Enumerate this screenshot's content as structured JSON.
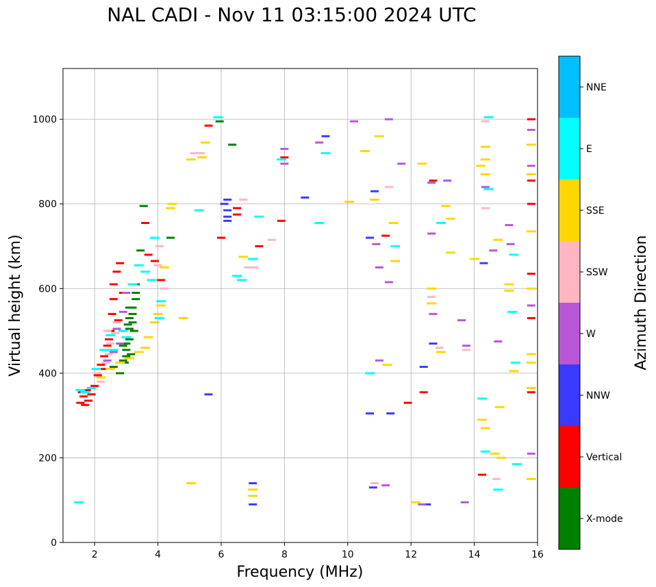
{
  "chart_data": {
    "type": "scatter",
    "title": "NAL CADI - Nov 11 03:15:00 2024 UTC",
    "xlabel": "Frequency (MHz)",
    "ylabel": "Virtual height (km)",
    "xlim": [
      1,
      16
    ],
    "ylim": [
      0,
      1120
    ],
    "xticks": [
      2,
      4,
      6,
      8,
      10,
      12,
      14,
      16
    ],
    "yticks": [
      0,
      200,
      400,
      600,
      800,
      1000
    ],
    "grid": true,
    "colorbar": {
      "label": "Azimuth Direction",
      "categories": [
        "X-mode",
        "Vertical",
        "NNW",
        "W",
        "SSW",
        "SSE",
        "E",
        "NNE"
      ],
      "colors": [
        "#008000",
        "#ff0000",
        "#3a3aff",
        "#b657d8",
        "#ffb6c1",
        "#ffd700",
        "#00ffff",
        "#00bfff"
      ]
    },
    "series": [
      {
        "name": "X-mode",
        "points": [
          [
            2.6,
            415
          ],
          [
            2.8,
            400
          ],
          [
            2.9,
            430
          ],
          [
            3.0,
            440
          ],
          [
            3.0,
            470
          ],
          [
            3.1,
            505
          ],
          [
            3.1,
            530
          ],
          [
            3.2,
            540
          ],
          [
            3.2,
            555
          ],
          [
            3.3,
            575
          ],
          [
            3.3,
            590
          ],
          [
            3.45,
            690
          ],
          [
            3.55,
            795
          ],
          [
            3.0,
            455
          ],
          [
            2.9,
            465
          ],
          [
            3.1,
            480
          ],
          [
            3.2,
            520
          ],
          [
            3.15,
            445
          ],
          [
            3.25,
            500
          ],
          [
            3.05,
            515
          ],
          [
            2.85,
            470
          ],
          [
            3.3,
            610
          ],
          [
            4.4,
            720
          ],
          [
            6.35,
            940
          ],
          [
            5.95,
            995
          ],
          [
            3.1,
            555
          ],
          [
            2.95,
            425
          ]
        ]
      },
      {
        "name": "Vertical",
        "points": [
          [
            1.55,
            330
          ],
          [
            1.7,
            325
          ],
          [
            1.8,
            335
          ],
          [
            1.6,
            355
          ],
          [
            2.0,
            370
          ],
          [
            2.1,
            395
          ],
          [
            2.2,
            420
          ],
          [
            2.3,
            440
          ],
          [
            2.4,
            465
          ],
          [
            2.5,
            500
          ],
          [
            2.55,
            540
          ],
          [
            2.6,
            575
          ],
          [
            2.6,
            610
          ],
          [
            2.7,
            640
          ],
          [
            2.8,
            660
          ],
          [
            2.9,
            590
          ],
          [
            3.7,
            680
          ],
          [
            3.9,
            665
          ],
          [
            4.1,
            620
          ],
          [
            3.6,
            755
          ],
          [
            5.6,
            985
          ],
          [
            6.0,
            720
          ],
          [
            6.5,
            790
          ],
          [
            6.5,
            775
          ],
          [
            7.2,
            700
          ],
          [
            7.9,
            760
          ],
          [
            8.0,
            910
          ],
          [
            11.2,
            725
          ],
          [
            12.7,
            855
          ],
          [
            12.4,
            355
          ],
          [
            14.25,
            160
          ],
          [
            15.8,
            355
          ],
          [
            15.8,
            530
          ],
          [
            15.8,
            635
          ],
          [
            15.8,
            800
          ],
          [
            15.8,
            855
          ],
          [
            15.8,
            1000
          ],
          [
            11.9,
            330
          ],
          [
            1.9,
            350
          ],
          [
            2.3,
            410
          ],
          [
            2.45,
            480
          ],
          [
            1.65,
            345
          ],
          [
            1.75,
            360
          ],
          [
            2.75,
            525
          ]
        ]
      },
      {
        "name": "NNW",
        "points": [
          [
            5.6,
            350
          ],
          [
            6.2,
            770
          ],
          [
            6.2,
            785
          ],
          [
            6.2,
            760
          ],
          [
            6.1,
            800
          ],
          [
            6.2,
            810
          ],
          [
            7.0,
            140
          ],
          [
            7.0,
            90
          ],
          [
            8.65,
            815
          ],
          [
            9.3,
            960
          ],
          [
            10.7,
            305
          ],
          [
            10.7,
            720
          ],
          [
            10.85,
            830
          ],
          [
            11.35,
            305
          ],
          [
            12.4,
            415
          ],
          [
            12.7,
            470
          ],
          [
            14.3,
            660
          ],
          [
            12.5,
            90
          ],
          [
            10.8,
            130
          ]
        ]
      },
      {
        "name": "W",
        "points": [
          [
            2.4,
            430
          ],
          [
            2.6,
            450
          ],
          [
            2.8,
            470
          ],
          [
            2.7,
            505
          ],
          [
            2.9,
            545
          ],
          [
            3.0,
            590
          ],
          [
            8.0,
            930
          ],
          [
            8.0,
            895
          ],
          [
            9.1,
            945
          ],
          [
            10.2,
            995
          ],
          [
            10.9,
            705
          ],
          [
            11.0,
            650
          ],
          [
            11.3,
            1000
          ],
          [
            11.3,
            615
          ],
          [
            11.7,
            895
          ],
          [
            12.65,
            850
          ],
          [
            12.65,
            730
          ],
          [
            13.15,
            855
          ],
          [
            13.6,
            525
          ],
          [
            13.75,
            465
          ],
          [
            14.35,
            840
          ],
          [
            14.6,
            690
          ],
          [
            14.75,
            475
          ],
          [
            15.1,
            750
          ],
          [
            15.15,
            705
          ],
          [
            15.8,
            210
          ],
          [
            15.8,
            890
          ],
          [
            15.8,
            560
          ],
          [
            15.8,
            975
          ],
          [
            13.7,
            95
          ],
          [
            12.7,
            540
          ],
          [
            12.35,
            90
          ],
          [
            11.2,
            135
          ],
          [
            11.0,
            430
          ]
        ]
      },
      {
        "name": "SSW",
        "points": [
          [
            2.2,
            380
          ],
          [
            2.35,
            425
          ],
          [
            2.45,
            445
          ],
          [
            2.5,
            470
          ],
          [
            2.65,
            495
          ],
          [
            2.7,
            520
          ],
          [
            2.4,
            500
          ],
          [
            4.05,
            700
          ],
          [
            4.0,
            655
          ],
          [
            4.2,
            600
          ],
          [
            5.15,
            920
          ],
          [
            5.35,
            920
          ],
          [
            6.7,
            810
          ],
          [
            6.85,
            650
          ],
          [
            7.05,
            650
          ],
          [
            7.6,
            715
          ],
          [
            11.3,
            840
          ],
          [
            12.65,
            580
          ],
          [
            12.9,
            460
          ],
          [
            13.75,
            455
          ],
          [
            14.35,
            995
          ],
          [
            14.35,
            790
          ],
          [
            14.7,
            150
          ],
          [
            10.85,
            140
          ],
          [
            2.1,
            400
          ]
        ]
      },
      {
        "name": "SSE",
        "points": [
          [
            2.2,
            390
          ],
          [
            2.5,
            410
          ],
          [
            2.8,
            425
          ],
          [
            3.1,
            435
          ],
          [
            3.4,
            450
          ],
          [
            3.7,
            485
          ],
          [
            3.9,
            520
          ],
          [
            4.0,
            540
          ],
          [
            4.1,
            560
          ],
          [
            4.2,
            650
          ],
          [
            4.4,
            790
          ],
          [
            4.45,
            800
          ],
          [
            5.05,
            905
          ],
          [
            5.4,
            910
          ],
          [
            5.5,
            945
          ],
          [
            4.8,
            530
          ],
          [
            5.05,
            140
          ],
          [
            6.7,
            675
          ],
          [
            7.0,
            125
          ],
          [
            7.0,
            110
          ],
          [
            10.05,
            805
          ],
          [
            10.55,
            925
          ],
          [
            10.85,
            810
          ],
          [
            11.0,
            960
          ],
          [
            11.25,
            420
          ],
          [
            11.45,
            755
          ],
          [
            11.5,
            665
          ],
          [
            12.35,
            895
          ],
          [
            12.65,
            565
          ],
          [
            12.65,
            600
          ],
          [
            12.95,
            450
          ],
          [
            13.1,
            795
          ],
          [
            13.25,
            765
          ],
          [
            13.25,
            685
          ],
          [
            14.0,
            670
          ],
          [
            14.2,
            890
          ],
          [
            14.35,
            935
          ],
          [
            14.35,
            905
          ],
          [
            14.35,
            870
          ],
          [
            14.35,
            270
          ],
          [
            14.25,
            290
          ],
          [
            14.65,
            210
          ],
          [
            14.75,
            715
          ],
          [
            14.8,
            320
          ],
          [
            14.85,
            200
          ],
          [
            15.1,
            610
          ],
          [
            15.1,
            595
          ],
          [
            15.25,
            405
          ],
          [
            15.8,
            150
          ],
          [
            15.8,
            365
          ],
          [
            15.8,
            445
          ],
          [
            15.8,
            425
          ],
          [
            15.8,
            600
          ],
          [
            15.8,
            735
          ],
          [
            15.8,
            870
          ],
          [
            15.8,
            940
          ],
          [
            12.15,
            95
          ],
          [
            3.6,
            460
          ]
        ]
      },
      {
        "name": "E",
        "points": [
          [
            1.5,
            95
          ],
          [
            1.55,
            360
          ],
          [
            1.7,
            355
          ],
          [
            1.9,
            365
          ],
          [
            2.05,
            410
          ],
          [
            2.3,
            455
          ],
          [
            2.5,
            490
          ],
          [
            2.9,
            500
          ],
          [
            3.2,
            610
          ],
          [
            3.4,
            655
          ],
          [
            3.6,
            640
          ],
          [
            3.8,
            620
          ],
          [
            3.9,
            720
          ],
          [
            4.1,
            570
          ],
          [
            4.05,
            530
          ],
          [
            5.3,
            785
          ],
          [
            6.5,
            630
          ],
          [
            6.65,
            620
          ],
          [
            7.0,
            670
          ],
          [
            7.2,
            770
          ],
          [
            7.9,
            905
          ],
          [
            9.1,
            755
          ],
          [
            9.3,
            920
          ],
          [
            10.7,
            400
          ],
          [
            11.5,
            700
          ],
          [
            12.95,
            755
          ],
          [
            14.25,
            340
          ],
          [
            14.35,
            215
          ],
          [
            14.45,
            1005
          ],
          [
            14.45,
            835
          ],
          [
            14.75,
            125
          ],
          [
            15.2,
            545
          ],
          [
            15.25,
            680
          ],
          [
            15.35,
            185
          ],
          [
            15.3,
            425
          ],
          [
            5.9,
            1005
          ],
          [
            2.6,
            455
          ],
          [
            3.0,
            485
          ]
        ]
      },
      {
        "name": "NNE",
        "points": []
      }
    ]
  }
}
